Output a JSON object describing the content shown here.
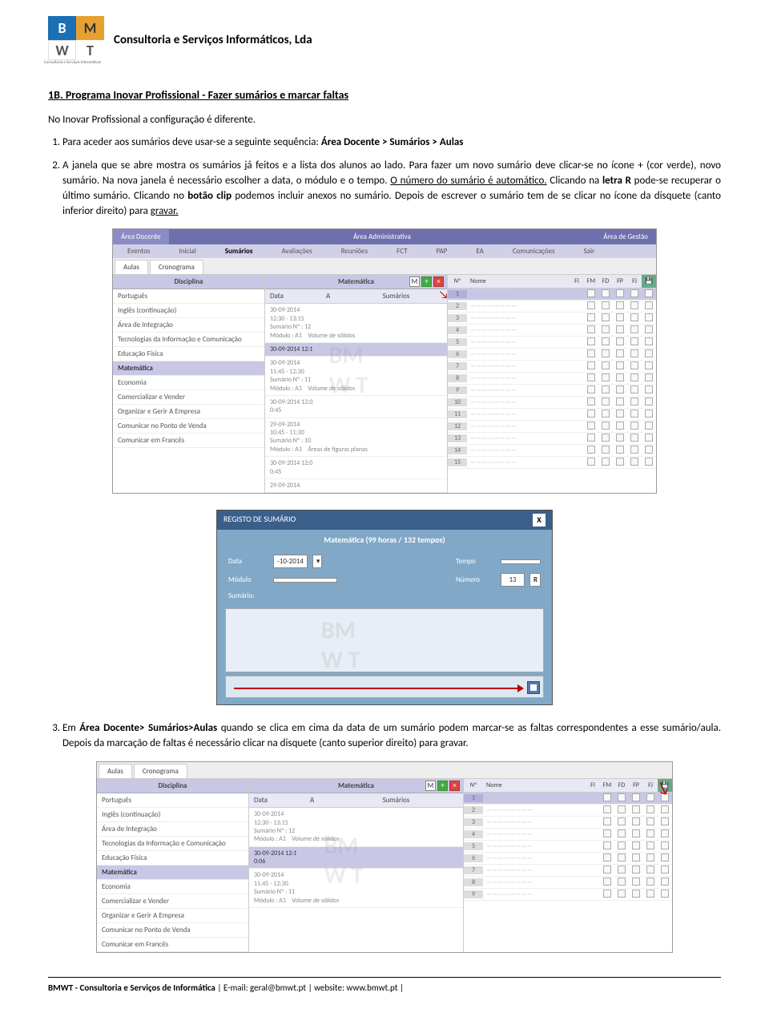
{
  "header": {
    "company": "Consultoria e Serviços Informáticos, Lda",
    "logo_sub": "Consultoria e Serviços Informáticos"
  },
  "section_title": "1B. Programa Inovar Profissional - Fazer sumários e marcar faltas",
  "intro": "No Inovar Profissional a configuração é diferente.",
  "step1_pre": "Para aceder aos sumários deve usar-se a seguinte sequência: ",
  "step1_bold": "Área Docente > Sumários > Aulas",
  "step2_a": "A janela que se abre mostra os sumários já feitos e a lista dos alunos ao lado. Para fazer um novo sumário deve clicar-se no ícone + (cor verde), novo sumário. Na nova janela é necessário escolher a data, o módulo e o tempo. ",
  "step2_u1": "O número do sumário é automático.",
  "step2_b": " Clicando na ",
  "step2_bold1": "letra R",
  "step2_c": " pode-se recuperar o último sumário. Clicando no ",
  "step2_bold2": "botão clip",
  "step2_d": " podemos incluir anexos no sumário. Depois de escrever o sumário tem de se clicar no ícone da disquete (canto inferior direito) para ",
  "step2_u2": "gravar.",
  "step3_a": "Em ",
  "step3_bold": "Área Docente> Sumários>Aulas",
  "step3_b": " quando se clica em cima da data de um sumário podem marcar-se as faltas correspondentes a esse sumário/aula. Depois da marcação de faltas é necessário clicar na disquete (canto superior direito) para gravar.",
  "footer": {
    "comp": "BMWT - Consultoria e Serviços de Informática",
    "email_lbl": " | E-mail: ",
    "email": "geral@bmwt.pt",
    "site_lbl": " | website: ",
    "site": "www.bmwt.pt",
    "end": " |"
  },
  "shot1": {
    "main_tabs": [
      "Área Docente",
      "Área Administrativa",
      "Área de Gestão"
    ],
    "sec_tabs": [
      "Eventos",
      "Inicial",
      "Sumários",
      "Avaliações",
      "Reuniões",
      "FCT",
      "PAP",
      "EA",
      "Comunicações",
      "Sair"
    ],
    "sub_tabs": [
      "Aulas",
      "Cronograma"
    ],
    "col_disc": "Disciplina",
    "col_mat": "Matemática",
    "disciplines": [
      "Português",
      "Inglês (continuação)",
      "Área de Integração",
      "Tecnologias da Informação e Comunicação",
      "Educação Física",
      "Matemática",
      "Economia",
      "Comercializar e Vender",
      "Organizar e Gerir A Empresa",
      "Comunicar no Ponto de Venda",
      "Comunicar em Francês"
    ],
    "disc_selected": 5,
    "mid_head": {
      "data": "Data",
      "a": "A",
      "sum": "Sumários"
    },
    "summaries": [
      {
        "date": "30-09-2014",
        "time": "12:30 - 13:15",
        "num": "Sumário Nº : 12",
        "mod": "Módulo : A1",
        "topic": "Volume de sólidos"
      },
      {
        "date": "30-09-2014 12:1",
        "time": "",
        "num": "",
        "mod": "",
        "topic": ""
      },
      {
        "date": "30-09-2014",
        "time": "11:45 - 12:30",
        "num": "Sumário Nº : 11",
        "mod": "Módulo : A1",
        "topic": "Volume de sólidos"
      },
      {
        "date": "30-09-2014 12:0",
        "time": "0:45",
        "num": "",
        "mod": "",
        "topic": ""
      },
      {
        "date": "29-09-2014",
        "time": "10:45 - 11:30",
        "num": "Sumário Nº : 10",
        "mod": "Módulo : A1",
        "topic": "Áreas de figuras planas"
      },
      {
        "date": "30-09-2014 12:0",
        "time": "0:45",
        "num": "",
        "mod": "",
        "topic": ""
      },
      {
        "date": "29-09-2014",
        "time": "",
        "num": "",
        "mod": "",
        "topic": ""
      }
    ],
    "right_head": {
      "no": "Nº",
      "nome": "Nome",
      "cols": [
        "FI",
        "FM",
        "FD",
        "FP",
        "FJ"
      ]
    },
    "students_count": 15
  },
  "modal": {
    "title": "REGISTO DE SUMÁRIO",
    "sub": "Matemática (99 horas / 132 tempos)",
    "lbl_data": "Data",
    "val_data": "-10-2014",
    "lbl_tempo": "Tempo",
    "lbl_mod": "Módulo",
    "lbl_num": "Número",
    "val_num": "13",
    "r": "R",
    "lbl_sum": "Sumário:",
    "close": "X"
  },
  "shot2": {
    "sub_tabs": [
      "Aulas",
      "Cronograma"
    ],
    "col_disc": "Disciplina",
    "col_mat": "Matemática",
    "disciplines": [
      "Português",
      "Inglês (continuação)",
      "Área de Integração",
      "Tecnologias da Informação e Comunicação",
      "Educação Física",
      "Matemática",
      "Economia",
      "Comercializar e Vender",
      "Organizar e Gerir A Empresa",
      "Comunicar no Ponto de Venda",
      "Comunicar em Francês"
    ],
    "disc_selected": 5,
    "summaries": [
      {
        "date": "30-09-2014",
        "time": "12:30 - 13:15",
        "num": "Sumário Nº : 12",
        "mod": "Módulo : A1",
        "topic": "Volume de sólidos"
      },
      {
        "date": "30-09-2014 12:1",
        "time": "0:06",
        "num": "",
        "mod": "",
        "topic": ""
      },
      {
        "date": "30-09-2014",
        "time": "11:45 - 12:30",
        "num": "Sumário Nº : 11",
        "mod": "Módulo : A1",
        "topic": "Volume de sólidos"
      }
    ],
    "right_head": {
      "no": "Nº",
      "nome": "Nome",
      "cols": [
        "FI",
        "FM",
        "FD",
        "FP",
        "FJ"
      ]
    },
    "students_count": 9
  }
}
